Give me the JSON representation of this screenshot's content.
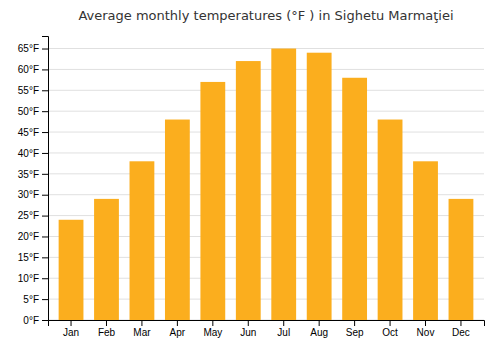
{
  "chart_data": {
    "type": "bar",
    "title": "Average monthly temperatures (°F ) in Sighetu Marmaţiei",
    "categories": [
      "Jan",
      "Feb",
      "Mar",
      "Apr",
      "May",
      "Jun",
      "Jul",
      "Aug",
      "Sep",
      "Oct",
      "Nov",
      "Dec"
    ],
    "values": [
      24,
      29,
      38,
      48,
      57,
      62,
      65,
      64,
      58,
      48,
      38,
      29
    ],
    "color": "#FBAE1E",
    "ylim": [
      0,
      68
    ],
    "yticks": [
      {
        "value": 0,
        "label": "0°F"
      },
      {
        "value": 5,
        "label": "5°F"
      },
      {
        "value": 10,
        "label": "10°F"
      },
      {
        "value": 15,
        "label": "15°F"
      },
      {
        "value": 20,
        "label": "20°F"
      },
      {
        "value": 25,
        "label": "25°F"
      },
      {
        "value": 30,
        "label": "30°F"
      },
      {
        "value": 35,
        "label": "35°F"
      },
      {
        "value": 40,
        "label": "40°F"
      },
      {
        "value": 45,
        "label": "45°F"
      },
      {
        "value": 50,
        "label": "50°F"
      },
      {
        "value": 55,
        "label": "55°F"
      },
      {
        "value": 60,
        "label": "60°F"
      },
      {
        "value": 65,
        "label": "65°F"
      }
    ],
    "grid": true
  }
}
